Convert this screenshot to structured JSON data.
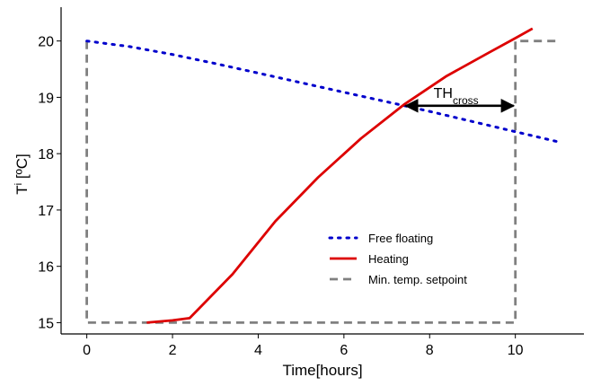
{
  "chart_data": {
    "type": "line",
    "xlabel": "Time[hours]",
    "ylabel": {
      "main": "T",
      "sup": "i",
      "unit": " [ºC]"
    },
    "xlim": [
      -0.6,
      11.6
    ],
    "ylim": [
      14.8,
      20.6
    ],
    "xticks": [
      0,
      2,
      4,
      6,
      8,
      10
    ],
    "yticks": [
      15,
      16,
      17,
      18,
      19,
      20
    ],
    "grid": false,
    "legend_position": "lower-right",
    "series": [
      {
        "name": "Free floating",
        "style": "dotted",
        "color": "#0000cc",
        "x": [
          0,
          1,
          2,
          3,
          4,
          5,
          6,
          7,
          8,
          9,
          10,
          11
        ],
        "y": [
          20.0,
          19.9,
          19.76,
          19.6,
          19.43,
          19.26,
          19.09,
          18.92,
          18.75,
          18.57,
          18.39,
          18.21
        ]
      },
      {
        "name": "Heating",
        "style": "solid",
        "color": "#dd0000",
        "x": [
          1.4,
          2.0,
          2.4,
          3.4,
          4.4,
          5.4,
          6.4,
          7.4,
          8.4,
          9.4,
          10.0,
          10.4
        ],
        "y": [
          15.0,
          15.04,
          15.08,
          15.86,
          16.8,
          17.58,
          18.27,
          18.87,
          19.38,
          19.8,
          20.05,
          20.22
        ]
      },
      {
        "name": "Min. temp. setpoint",
        "style": "dashed",
        "color": "#808080",
        "x": [
          0,
          0,
          10,
          10,
          11
        ],
        "y": [
          20.0,
          15.0,
          15.0,
          20.0,
          20.0
        ]
      }
    ],
    "annotations": [
      {
        "text": "TH",
        "subscript": "cross",
        "type": "double-arrow",
        "x_start": 7.4,
        "x_end": 10.0,
        "y": 18.85
      }
    ]
  }
}
